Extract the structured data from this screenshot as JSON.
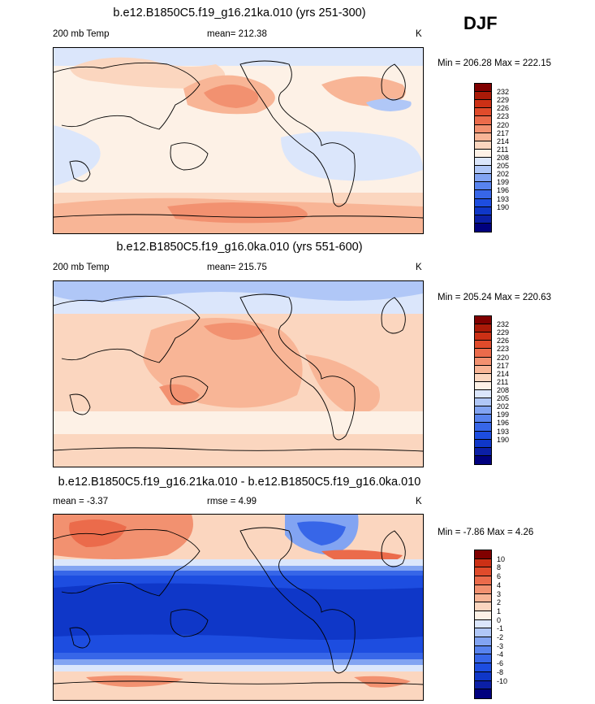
{
  "season": "DJF",
  "palettes": {
    "abs": [
      "#00007e",
      "#0b1fa6",
      "#0f37c8",
      "#1d4de0",
      "#3766e8",
      "#5883ee",
      "#82a4f2",
      "#b0c7f7",
      "#dbe6fb",
      "#fdf1e6",
      "#fbd6bf",
      "#f8b596",
      "#f29170",
      "#eb6b4b",
      "#e04b2b",
      "#cc3015",
      "#aa1a08",
      "#800000"
    ],
    "diff": [
      "#00007e",
      "#0b1fa6",
      "#0f37c8",
      "#1d4de0",
      "#3766e8",
      "#5883ee",
      "#82a4f2",
      "#b0c7f7",
      "#dbe6fb",
      "#fdf1e6",
      "#fbd6bf",
      "#f8b596",
      "#f29170",
      "#eb6b4b",
      "#e04b2b",
      "#cc3015",
      "#800000"
    ]
  },
  "panels": [
    {
      "title": "b.e12.B1850C5.f19_g16.21ka.010 (yrs 251-300)",
      "left_label": "200 mb Temp",
      "mean_label": "mean= 212.38",
      "units": "K",
      "minmax": "Min = 206.28 Max = 222.15",
      "colorbar_ticks": [
        "232",
        "229",
        "226",
        "223",
        "220",
        "217",
        "214",
        "211",
        "208",
        "205",
        "202",
        "199",
        "196",
        "193",
        "190"
      ]
    },
    {
      "title": "b.e12.B1850C5.f19_g16.0ka.010 (yrs 551-600)",
      "left_label": "200 mb Temp",
      "mean_label": "mean= 215.75",
      "units": "K",
      "minmax": "Min = 205.24 Max = 220.63",
      "colorbar_ticks": [
        "232",
        "229",
        "226",
        "223",
        "220",
        "217",
        "214",
        "211",
        "208",
        "205",
        "202",
        "199",
        "196",
        "193",
        "190"
      ]
    },
    {
      "title": "b.e12.B1850C5.f19_g16.21ka.010 - b.e12.B1850C5.f19_g16.0ka.010",
      "left_label": "mean =  -3.37",
      "mean_label": "rmse =   4.99",
      "units": "K",
      "minmax": "Min =  -7.86 Max =   4.26",
      "colorbar_ticks": [
        "10",
        "8",
        "6",
        "4",
        "3",
        "2",
        "1",
        "0",
        "-1",
        "-2",
        "-3",
        "-4",
        "-6",
        "-8",
        "-10"
      ]
    }
  ]
}
